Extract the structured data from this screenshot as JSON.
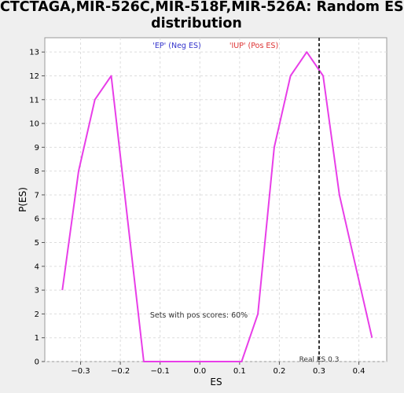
{
  "chart_data": {
    "type": "line",
    "title_line1": "CTCTAGA,MIR-526C,MIR-518F,MIR-526A: Random ES",
    "title_line2": "distribution",
    "xlabel": "ES",
    "ylabel": "P(ES)",
    "xlim": [
      -0.39,
      0.47
    ],
    "ylim": [
      0,
      13.6
    ],
    "x_ticks": [
      -0.3,
      -0.2,
      -0.1,
      0.0,
      0.1,
      0.2,
      0.3,
      0.4
    ],
    "x_tick_labels": [
      "−0.3",
      "−0.2",
      "−0.1",
      "0.0",
      "0.1",
      "0.2",
      "0.3",
      "0.4"
    ],
    "y_ticks": [
      0,
      1,
      2,
      3,
      4,
      5,
      6,
      7,
      8,
      9,
      10,
      11,
      12,
      13
    ],
    "grid": true,
    "series": [
      {
        "color": "#e83ee8",
        "x": [
          -0.346,
          -0.305,
          -0.264,
          -0.223,
          -0.182,
          -0.141,
          -0.1,
          -0.059,
          -0.018,
          0.023,
          0.064,
          0.105,
          0.146,
          0.187,
          0.228,
          0.269,
          0.31,
          0.351,
          0.392,
          0.433
        ],
        "y": [
          3,
          8,
          11,
          12,
          6,
          0,
          0,
          0,
          0,
          0,
          0,
          0,
          2,
          9,
          12,
          13,
          12,
          7,
          4,
          1
        ]
      }
    ],
    "real_es": 0.3,
    "real_es_label": "Real ES 0.3",
    "legend_neg": "'EP' (Neg ES)",
    "legend_pos": "'IUP' (Pos ES)",
    "legend_neg_color": "#3333cc",
    "legend_pos_color": "#dd3333",
    "annotation": "Sets with pos scores: 60%"
  }
}
